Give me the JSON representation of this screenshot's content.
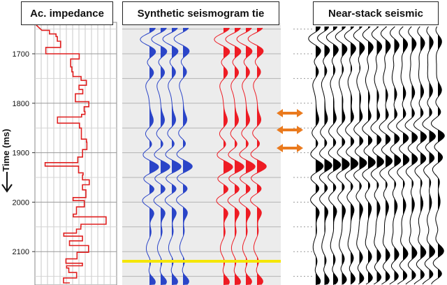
{
  "panels": {
    "impedance_title": "Ac. impedance",
    "synthetic_title": "Synthetic  seismogram tie",
    "seismic_title": "Near-stack seismic"
  },
  "axis": {
    "label": "Time (ms)",
    "arrow": "↓",
    "ticks": [
      "1700",
      "1800",
      "1900",
      "2000",
      "2100"
    ]
  },
  "colors": {
    "impedance": "#e02020",
    "synthetic_left": "#2b45c8",
    "synthetic_right": "#ee1c24",
    "seismic": "#000000",
    "marker_line": "#f5e600",
    "tie_arrow": "#ea7a1e"
  },
  "tie_arrows_count": 3,
  "icons": {
    "time_arrow": "down-arrow-icon",
    "tie_arrow": "double-headed-arrow-icon"
  }
}
